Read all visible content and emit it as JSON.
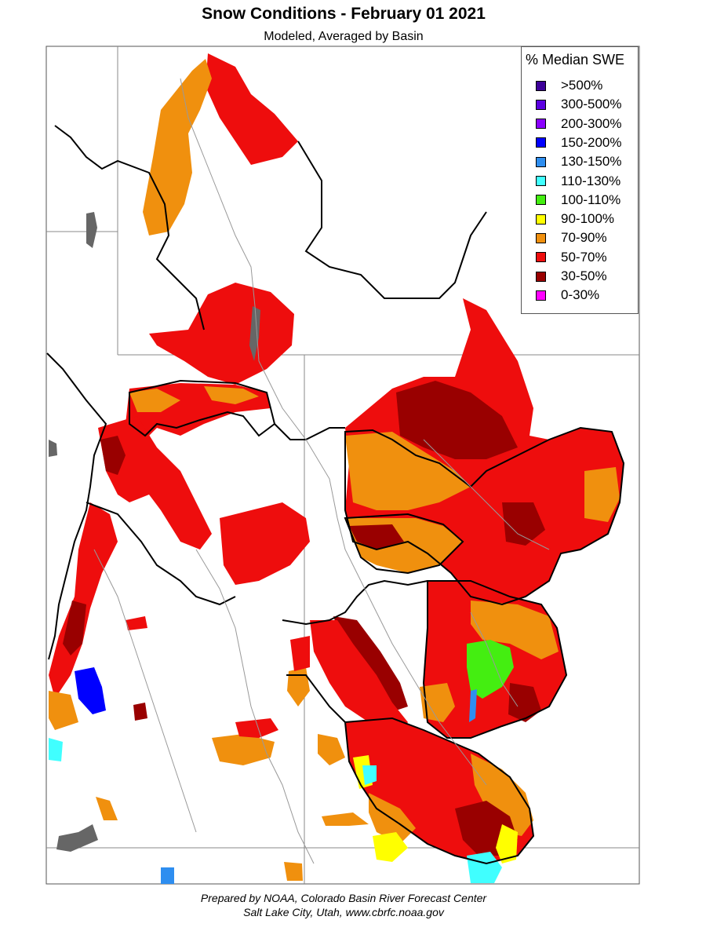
{
  "map": {
    "title": "Snow Conditions - February 01 2021",
    "subtitle": "Modeled, Averaged by Basin"
  },
  "legend": {
    "title": "% Median SWE",
    "items": [
      {
        "label": ">500%",
        "color": "#3d0099"
      },
      {
        "label": "300-500%",
        "color": "#5b00e0"
      },
      {
        "label": "200-300%",
        "color": "#8a00ff"
      },
      {
        "label": "150-200%",
        "color": "#0000ff"
      },
      {
        "label": "130-150%",
        "color": "#2e8ef0"
      },
      {
        "label": "110-130%",
        "color": "#40ffff"
      },
      {
        "label": "100-110%",
        "color": "#44ee11"
      },
      {
        "label": "90-100%",
        "color": "#ffff00"
      },
      {
        "label": "70-90%",
        "color": "#f0900e"
      },
      {
        "label": "50-70%",
        "color": "#ee0d0d"
      },
      {
        "label": "30-50%",
        "color": "#990000"
      },
      {
        "label": "0-30%",
        "color": "#ff00ff"
      }
    ]
  },
  "credits": {
    "line1": "Prepared by NOAA, Colorado Basin River Forecast Center",
    "line2": "Salt Lake City, Utah, www.cbrfc.noaa.gov"
  }
}
